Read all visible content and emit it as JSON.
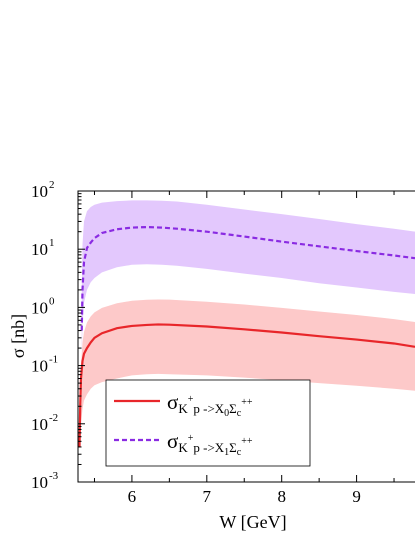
{
  "chart_data": {
    "type": "line",
    "xlabel": "W [GeV]",
    "ylabel": "σ [nb]",
    "xlim": [
      5.28,
      9.78
    ],
    "ylim": [
      0.001,
      100
    ],
    "yscale": "log",
    "x_ticks": [
      "6",
      "7",
      "8",
      "9"
    ],
    "y_ticks": [
      {
        "base": "10",
        "exp": "-3"
      },
      {
        "base": "10",
        "exp": "-2"
      },
      {
        "base": "10",
        "exp": "-1"
      },
      {
        "base": "10",
        "exp": "0"
      },
      {
        "base": "10",
        "exp": "1"
      },
      {
        "base": "10",
        "exp": "2"
      }
    ],
    "grid": false,
    "legend_placement": "bottom-left",
    "series": [
      {
        "key": "x0",
        "legend": {
          "sigma": "σ",
          "sub1": "K",
          "sup1": "+",
          "sub2": "p ->X",
          "sub3": "0",
          "sub4": "Σ",
          "sub5": "c",
          "sup5": "++"
        },
        "color": "#e8262a",
        "band_color": "#fdc9c9",
        "style": "solid",
        "x": [
          5.3,
          5.31,
          5.32,
          5.34,
          5.36,
          5.4,
          5.45,
          5.5,
          5.6,
          5.8,
          6.0,
          6.2,
          6.35,
          6.5,
          7.0,
          7.5,
          8.0,
          8.5,
          9.0,
          9.5,
          9.78
        ],
        "y": [
          0.004,
          0.022,
          0.06,
          0.12,
          0.16,
          0.2,
          0.25,
          0.3,
          0.36,
          0.44,
          0.48,
          0.5,
          0.51,
          0.505,
          0.47,
          0.42,
          0.37,
          0.32,
          0.28,
          0.24,
          0.21
        ],
        "band_low": [
          0.0045,
          0.006,
          0.01,
          0.018,
          0.025,
          0.032,
          0.04,
          0.046,
          0.052,
          0.06,
          0.068,
          0.071,
          0.072,
          0.071,
          0.068,
          0.062,
          0.056,
          0.05,
          0.045,
          0.04,
          0.037
        ],
        "band_high": [
          0.006,
          0.03,
          0.1,
          0.25,
          0.38,
          0.55,
          0.7,
          0.82,
          0.98,
          1.18,
          1.3,
          1.35,
          1.37,
          1.36,
          1.25,
          1.12,
          0.98,
          0.85,
          0.74,
          0.63,
          0.56
        ]
      },
      {
        "key": "x1",
        "legend": {
          "sigma": "σ",
          "sub1": "K",
          "sup1": "+",
          "sub2": "p ->X",
          "sub3": "1",
          "sub4": "Σ",
          "sub5": "c",
          "sup5": "++"
        },
        "color": "#8a2be2",
        "band_color": "#e3c8fd",
        "style": "dashed",
        "x": [
          5.33,
          5.34,
          5.36,
          5.4,
          5.45,
          5.5,
          5.6,
          5.8,
          6.0,
          6.2,
          6.4,
          6.6,
          7.0,
          7.5,
          8.0,
          8.5,
          9.0,
          9.5,
          9.78
        ],
        "y": [
          0.4,
          2.0,
          6.0,
          10.5,
          13.0,
          15.5,
          19.0,
          22.0,
          23.5,
          24.0,
          23.5,
          22.5,
          20.0,
          16.5,
          13.5,
          11.2,
          9.3,
          7.8,
          7.0
        ],
        "band_low": [
          0.15,
          0.5,
          1.2,
          2.0,
          2.7,
          3.2,
          4.0,
          4.9,
          5.4,
          5.5,
          5.4,
          5.2,
          4.6,
          3.8,
          3.2,
          2.6,
          2.2,
          1.85,
          1.7
        ],
        "band_high": [
          2.0,
          12.0,
          30.0,
          45.0,
          53.0,
          58.0,
          63.0,
          67.0,
          69.0,
          69.0,
          68.0,
          66.0,
          58.0,
          48.0,
          40.0,
          33.0,
          27.0,
          22.5,
          20.0
        ]
      }
    ]
  }
}
